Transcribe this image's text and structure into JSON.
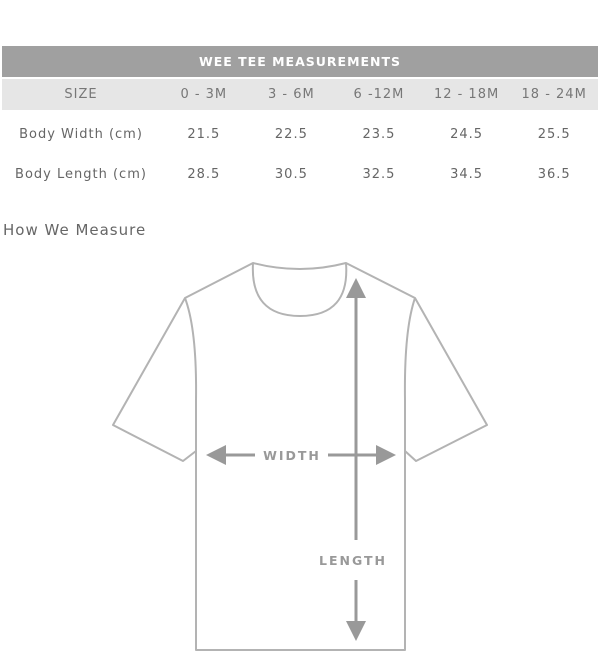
{
  "table": {
    "title": "WEE TEE MEASUREMENTS",
    "header": [
      "SIZE",
      "0 - 3M",
      "3 - 6M",
      "6 -12M",
      "12 - 18M",
      "18 - 24M"
    ],
    "rows": [
      {
        "label": "Body Width (cm)",
        "values": [
          "21.5",
          "22.5",
          "23.5",
          "24.5",
          "25.5"
        ]
      },
      {
        "label": "Body Length (cm)",
        "values": [
          "28.5",
          "30.5",
          "32.5",
          "34.5",
          "36.5"
        ]
      }
    ]
  },
  "section_title": "How We Measure",
  "diagram": {
    "width_label": "WIDTH",
    "length_label": "LENGTH",
    "line_color": "#b3b3b3",
    "arrow_color": "#999999"
  }
}
